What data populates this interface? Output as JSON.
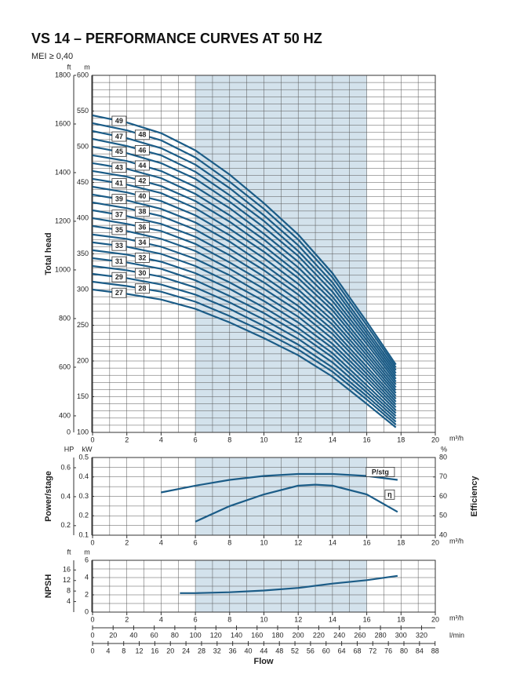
{
  "title": "VS 14 – PERFORMANCE CURVES AT 50 HZ",
  "subtitle": "MEI ≥ 0,40",
  "flow_label": "Flow",
  "flow_scales": [
    {
      "unit": "l/min",
      "lim": [
        0,
        333.33
      ],
      "ticks": [
        0,
        20,
        40,
        60,
        80,
        100,
        120,
        140,
        160,
        180,
        200,
        220,
        240,
        260,
        280,
        300,
        320
      ]
    },
    {
      "lim": [
        0,
        88.06
      ],
      "ticks": [
        0,
        4,
        8,
        12,
        16,
        20,
        24,
        28,
        32,
        36,
        40,
        44,
        48,
        52,
        56,
        60,
        64,
        68,
        72,
        76,
        80,
        84,
        88
      ]
    }
  ],
  "chart_data": [
    {
      "type": "line",
      "ylabel": "Total head",
      "xlabel": "m³/h",
      "xlim": [
        0,
        20
      ],
      "xticks": [
        0,
        2,
        4,
        6,
        8,
        10,
        12,
        14,
        16,
        18,
        20
      ],
      "x_minor_step": 1,
      "y_minor_step": 10,
      "shade": [
        6,
        16
      ],
      "color": "#1b5c87",
      "ylim": [
        100,
        600
      ],
      "yticks": [
        100,
        150,
        200,
        250,
        300,
        350,
        400,
        450,
        500,
        550,
        600
      ],
      "y_unit": "m",
      "y2lim": [
        332,
        1800
      ],
      "y2ticks": [
        400,
        600,
        800,
        1000,
        1200,
        1400,
        1600,
        1800
      ],
      "y2_unit": "ft",
      "y2_side": "left",
      "y2_break_label": "0",
      "x": [
        0,
        2,
        4,
        6,
        8,
        10,
        12,
        14,
        16,
        17.7
      ],
      "series": [
        {
          "name": "27",
          "values": [
            300,
            294,
            286,
            273,
            254,
            232,
            208,
            178,
            140,
            107
          ]
        },
        {
          "name": "28",
          "values": [
            311,
            305,
            297,
            283,
            263,
            241,
            216,
            185,
            146,
            111
          ]
        },
        {
          "name": "29",
          "values": [
            322,
            316,
            307,
            293,
            273,
            249,
            223,
            191,
            151,
            115
          ]
        },
        {
          "name": "30",
          "values": [
            333,
            327,
            318,
            303,
            282,
            258,
            231,
            198,
            156,
            119
          ]
        },
        {
          "name": "31",
          "values": [
            344,
            338,
            329,
            313,
            291,
            267,
            239,
            205,
            161,
            123
          ]
        },
        {
          "name": "32",
          "values": [
            355,
            349,
            339,
            323,
            301,
            275,
            246,
            211,
            166,
            127
          ]
        },
        {
          "name": "33",
          "values": [
            366,
            360,
            350,
            333,
            310,
            284,
            254,
            218,
            172,
            131
          ]
        },
        {
          "name": "34",
          "values": [
            377,
            371,
            360,
            343,
            320,
            292,
            262,
            224,
            177,
            135
          ]
        },
        {
          "name": "35",
          "values": [
            389,
            382,
            371,
            354,
            329,
            301,
            270,
            231,
            182,
            139
          ]
        },
        {
          "name": "36",
          "values": [
            400,
            392,
            382,
            364,
            338,
            310,
            277,
            238,
            187,
            143
          ]
        },
        {
          "name": "37",
          "values": [
            411,
            403,
            392,
            374,
            348,
            318,
            285,
            244,
            192,
            147
          ]
        },
        {
          "name": "38",
          "values": [
            422,
            414,
            403,
            384,
            357,
            327,
            293,
            251,
            198,
            151
          ]
        },
        {
          "name": "39",
          "values": [
            433,
            425,
            413,
            394,
            367,
            335,
            300,
            257,
            203,
            155
          ]
        },
        {
          "name": "40",
          "values": [
            444,
            436,
            424,
            404,
            376,
            344,
            308,
            264,
            208,
            159
          ]
        },
        {
          "name": "41",
          "values": [
            455,
            447,
            435,
            414,
            385,
            353,
            316,
            271,
            213,
            163
          ]
        },
        {
          "name": "42",
          "values": [
            466,
            458,
            445,
            424,
            395,
            361,
            323,
            277,
            218,
            167
          ]
        },
        {
          "name": "43",
          "values": [
            477,
            469,
            456,
            434,
            404,
            370,
            331,
            284,
            224,
            171
          ]
        },
        {
          "name": "44",
          "values": [
            488,
            480,
            466,
            444,
            414,
            378,
            339,
            290,
            229,
            175
          ]
        },
        {
          "name": "45",
          "values": [
            500,
            491,
            477,
            455,
            423,
            387,
            347,
            297,
            234,
            179
          ]
        },
        {
          "name": "46",
          "values": [
            511,
            501,
            488,
            465,
            432,
            396,
            354,
            304,
            239,
            183
          ]
        },
        {
          "name": "47",
          "values": [
            522,
            512,
            498,
            475,
            442,
            404,
            362,
            310,
            244,
            187
          ]
        },
        {
          "name": "48",
          "values": [
            533,
            523,
            509,
            485,
            451,
            413,
            370,
            317,
            250,
            191
          ]
        },
        {
          "name": "49",
          "values": [
            544,
            534,
            519,
            495,
            461,
            421,
            377,
            323,
            255,
            195
          ]
        }
      ]
    },
    {
      "type": "line",
      "ylabel": "Power/stage",
      "y2label": "Efficiency",
      "xlabel": "m³/h",
      "xlim": [
        0,
        20
      ],
      "xticks": [
        0,
        2,
        4,
        6,
        8,
        10,
        12,
        14,
        16,
        18,
        20
      ],
      "x_minor_step": 1,
      "y_minor_step": 0.05,
      "shade": [
        6,
        16
      ],
      "color": "#1b5c87",
      "ylim": [
        0.1,
        0.5
      ],
      "yticks": [
        0.1,
        0.2,
        0.3,
        0.4,
        0.5
      ],
      "y_unit": "kW",
      "y2lim": [
        40,
        80
      ],
      "y2ticks": [
        40,
        50,
        60,
        70,
        80
      ],
      "y2_unit": "%",
      "y2_side": "right",
      "y3lim": [
        0.1341,
        0.6705
      ],
      "y3ticks": [
        0.2,
        0.4,
        0.6
      ],
      "y3_unit": "HP",
      "series": [
        {
          "name": "P/stg",
          "x": [
            4,
            6,
            8,
            10,
            12,
            14,
            16,
            17.8
          ],
          "values": [
            0.32,
            0.355,
            0.385,
            0.405,
            0.415,
            0.415,
            0.405,
            0.385
          ]
        },
        {
          "name": "η",
          "axis": "y2",
          "x": [
            6,
            8,
            10,
            12,
            13,
            14,
            16,
            17.8
          ],
          "values": [
            47,
            55,
            61,
            65.5,
            66,
            65.5,
            61,
            52
          ]
        }
      ]
    },
    {
      "type": "line",
      "ylabel": "NPSH",
      "xlabel": "m³/h",
      "xlim": [
        0,
        20
      ],
      "xticks": [
        0,
        2,
        4,
        6,
        8,
        10,
        12,
        14,
        16,
        18,
        20
      ],
      "x_minor_step": 1,
      "y_minor_step": 1,
      "shade": [
        6,
        16
      ],
      "color": "#1b5c87",
      "ylim": [
        0,
        6
      ],
      "yticks": [
        0,
        2,
        4,
        6
      ],
      "y_unit": "m",
      "y2lim": [
        0,
        19.685
      ],
      "y2ticks": [
        4,
        8,
        12,
        16
      ],
      "y2_unit": "ft",
      "y2_side": "left",
      "series": [
        {
          "x": [
            5.1,
            6,
            8,
            10,
            12,
            14,
            16,
            17.8
          ],
          "values": [
            2.2,
            2.2,
            2.3,
            2.5,
            2.8,
            3.3,
            3.7,
            4.2
          ]
        }
      ]
    }
  ]
}
